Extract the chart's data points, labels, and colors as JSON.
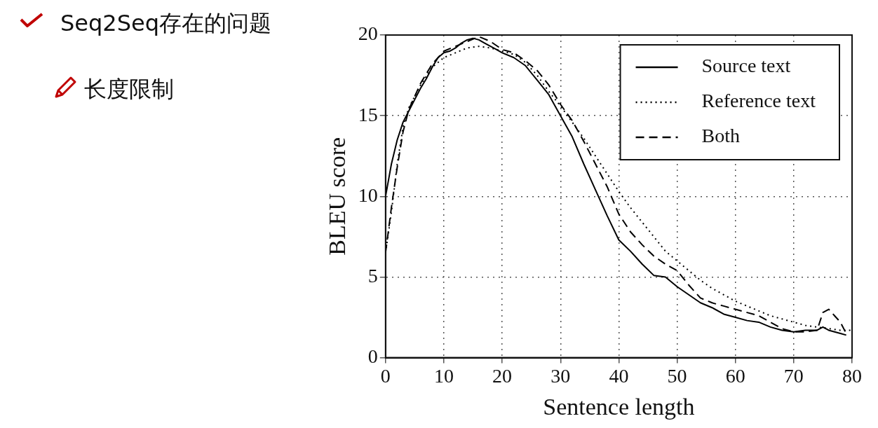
{
  "chart_data": {
    "type": "line",
    "title": "Seq2Seq存在的问题",
    "subtitle": "长度限制",
    "xlabel": "Sentence length",
    "ylabel": "BLEU score",
    "xlim": [
      0,
      80
    ],
    "xticks": [
      0,
      10,
      20,
      30,
      40,
      50,
      60,
      70,
      80
    ],
    "ylim": [
      0,
      20
    ],
    "yticks": [
      0,
      5,
      10,
      15,
      20
    ],
    "grid": true,
    "legend": "top right",
    "marker": "none",
    "series": [
      {
        "name": "Source text",
        "color": "#000000",
        "line_style": "solid",
        "x": [
          0,
          1,
          2,
          3,
          4,
          5,
          6,
          7,
          8,
          9,
          10,
          11,
          12,
          13,
          14,
          15,
          16,
          17,
          18,
          19,
          20,
          22,
          24,
          26,
          28,
          30,
          32,
          34,
          36,
          38,
          40,
          42,
          44,
          46,
          48,
          50,
          52,
          54,
          56,
          58,
          60,
          62,
          64,
          66,
          68,
          70,
          72,
          74,
          75,
          76,
          78,
          79
        ],
        "values": [
          10,
          12,
          13.5,
          14.6,
          15.3,
          16,
          16.7,
          17.3,
          18,
          18.6,
          18.9,
          19,
          19.2,
          19.5,
          19.7,
          19.8,
          19.7,
          19.5,
          19.3,
          19.1,
          18.9,
          18.6,
          18.1,
          17.2,
          16.3,
          15,
          13.7,
          12,
          10.4,
          8.8,
          7.3,
          6.6,
          5.8,
          5.1,
          5,
          4.4,
          3.9,
          3.4,
          3.1,
          2.7,
          2.5,
          2.3,
          2.2,
          1.9,
          1.7,
          1.6,
          1.7,
          1.7,
          1.9,
          1.7,
          1.5,
          1.4
        ]
      },
      {
        "name": "Reference text",
        "color": "#000000",
        "line_style": "dotted",
        "x": [
          0,
          1,
          2,
          3,
          4,
          6,
          8,
          10,
          12,
          14,
          16,
          18,
          20,
          22,
          24,
          26,
          28,
          30,
          32,
          34,
          36,
          38,
          40,
          42,
          44,
          46,
          48,
          50,
          52,
          54,
          56,
          58,
          60,
          62,
          64,
          66,
          68,
          70,
          72,
          74,
          76,
          78,
          80
        ],
        "values": [
          6.5,
          9,
          12,
          14.3,
          15.5,
          16.9,
          18,
          18.6,
          18.9,
          19.2,
          19.3,
          19.2,
          19,
          18.8,
          18.3,
          17.5,
          16.5,
          15.6,
          14.6,
          13.6,
          12.5,
          11.4,
          10.3,
          9.3,
          8.4,
          7.5,
          6.6,
          6,
          5.4,
          4.8,
          4.3,
          3.9,
          3.5,
          3.2,
          2.9,
          2.6,
          2.4,
          2.2,
          2,
          1.9,
          1.8,
          1.7,
          1.7
        ]
      },
      {
        "name": "Both",
        "color": "#000000",
        "line_style": "dashed",
        "x": [
          0,
          1,
          2,
          3,
          4,
          6,
          8,
          10,
          12,
          14,
          16,
          18,
          20,
          22,
          24,
          26,
          28,
          30,
          32,
          34,
          36,
          38,
          40,
          42,
          44,
          46,
          48,
          50,
          52,
          54,
          56,
          58,
          60,
          62,
          64,
          66,
          68,
          70,
          72,
          74,
          75,
          76,
          77,
          78,
          79
        ],
        "values": [
          6.5,
          9.3,
          11.8,
          14,
          15.4,
          17,
          18.2,
          19,
          19.3,
          19.6,
          19.9,
          19.6,
          19.1,
          18.9,
          18.4,
          17.8,
          16.9,
          15.7,
          14.7,
          13.4,
          12,
          10.6,
          8.9,
          7.8,
          7,
          6.3,
          5.8,
          5.4,
          4.5,
          3.7,
          3.4,
          3.2,
          3,
          2.8,
          2.6,
          2.2,
          1.8,
          1.6,
          1.6,
          1.7,
          2.8,
          3,
          2.6,
          2.2,
          1.5
        ]
      }
    ]
  }
}
